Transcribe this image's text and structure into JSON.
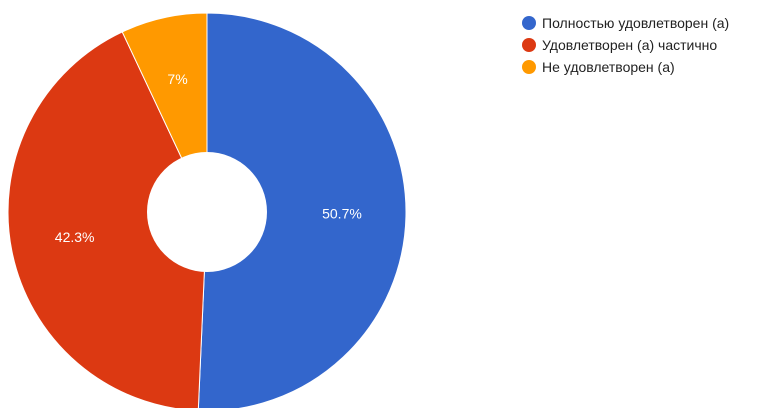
{
  "chart_data": {
    "type": "pie",
    "donut": true,
    "title": "",
    "categories": [
      "Полностью удовлетворен (а)",
      "Удовлетворен (а) частично",
      "Не удовлетворен (а)"
    ],
    "values": [
      50.7,
      42.3,
      7
    ],
    "value_labels": [
      "50.7%",
      "42.3%",
      "7%"
    ],
    "colors": [
      "#3366cc",
      "#dc3912",
      "#ff9900"
    ],
    "legend_position": "top-right"
  }
}
